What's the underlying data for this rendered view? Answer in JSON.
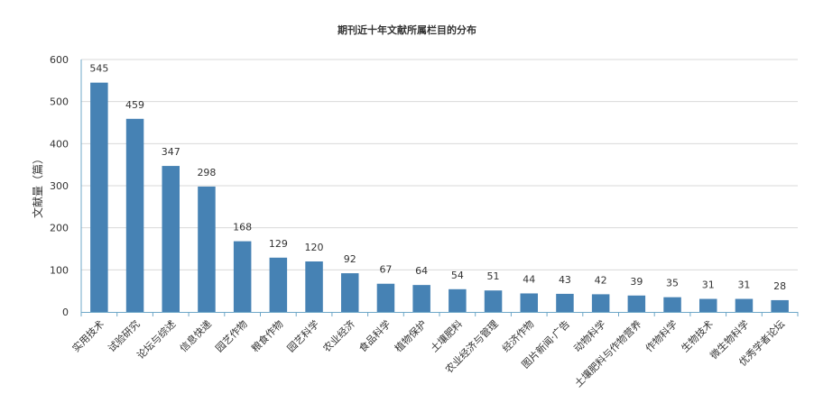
{
  "chart_data": {
    "type": "bar",
    "title": "期刊近十年文献所属栏目的分布",
    "xlabel": "",
    "ylabel": "文献量（篇）",
    "categories": [
      "实用技术",
      "试验研究",
      "论坛与综述",
      "信息快递",
      "园艺作物",
      "粮食作物",
      "园艺科学",
      "农业经济",
      "食品科学",
      "植物保护",
      "土壤肥料",
      "农业经济与管理",
      "经济作物",
      "图片新闻·广告",
      "动物科学",
      "土壤肥料与作物营养",
      "作物科学",
      "生物技术",
      "微生物科学",
      "优秀学者论坛"
    ],
    "values": [
      545,
      459,
      347,
      298,
      168,
      129,
      120,
      92,
      67,
      64,
      54,
      51,
      44,
      43,
      42,
      39,
      35,
      31,
      31,
      28
    ],
    "yticks": [
      0,
      100,
      200,
      300,
      400,
      500,
      600
    ],
    "ylim": [
      0,
      600
    ],
    "grid": true,
    "legend": "none",
    "colors": {
      "bar": "#4682b4",
      "grid": "#d9d9d9",
      "axis": "#6fa8c8",
      "text": "#333333"
    }
  }
}
